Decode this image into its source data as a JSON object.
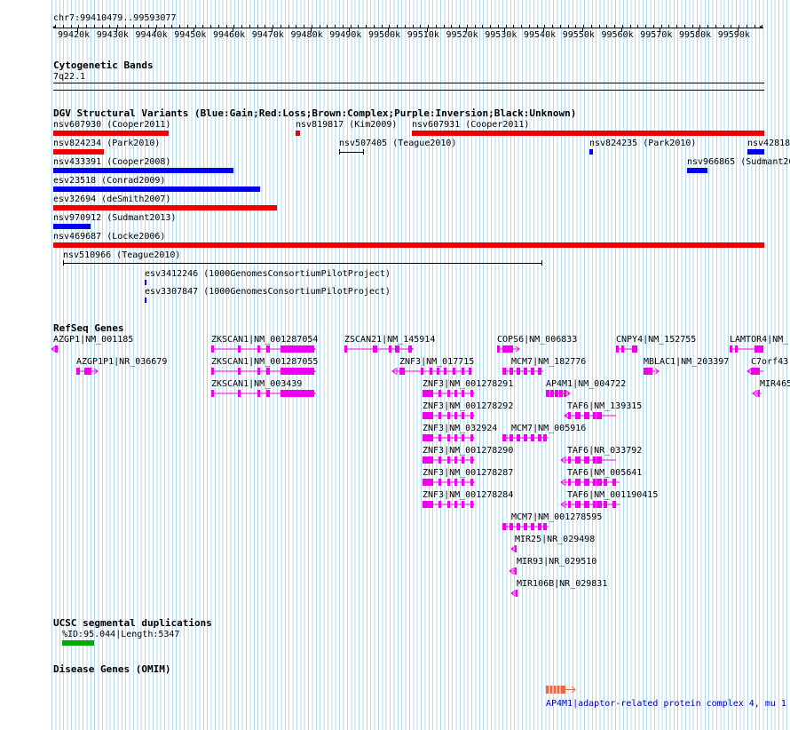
{
  "header": {
    "location": "chr7:99410479..99593077",
    "ruler_ticks": [
      "99420k",
      "99430k",
      "99440k",
      "99450k",
      "99460k",
      "99470k",
      "99480k",
      "99490k",
      "99500k",
      "99510k",
      "99520k",
      "99530k",
      "99540k",
      "99550k",
      "99560k",
      "99570k",
      "99580k",
      "99590k"
    ]
  },
  "cyto": {
    "title": "Cytogenetic Bands",
    "band": "7q22.1"
  },
  "dgv": {
    "title": "DGV Structural Variants (Blue:Gain;Red:Loss;Brown:Complex;Purple:Inversion;Black:Unknown)",
    "items": [
      "nsv607930 (Cooper2011)",
      "nsv819817 (Kim2009)",
      "nsv607931 (Cooper2011)",
      "nsv824234 (Park2010)",
      "nsv507405 (Teague2010)",
      "nsv824235 (Park2010)",
      "nsv42818",
      "nsv433391 (Cooper2008)",
      "nsv966865 (Sudmant20",
      "esv23518 (Conrad2009)",
      "esv32694 (deSmith2007)",
      "nsv970912 (Sudmant2013)",
      "nsv469687 (Locke2006)",
      "nsv510966 (Teague2010)",
      "esv3412246 (1000GenomesConsortiumPilotProject)",
      "esv3307847 (1000GenomesConsortiumPilotProject)"
    ],
    "colors": {
      "gain": "#0000ee",
      "loss": "#ee0000",
      "unknown": "#000000"
    }
  },
  "refseq": {
    "title": "RefSeq Genes",
    "genes": [
      "AZGP1|NM_001185",
      "AZGP1P1|NR_036679",
      "ZKSCAN1|NM_001287054",
      "ZKSCAN1|NM_001287055",
      "ZKSCAN1|NM_003439",
      "ZSCAN21|NM_145914",
      "ZNF3|NM_017715",
      "ZNF3|NM_001278291",
      "ZNF3|NM_001278292",
      "ZNF3|NM_032924",
      "ZNF3|NM_001278290",
      "ZNF3|NM_001278287",
      "ZNF3|NM_001278284",
      "COPS6|NM_006833",
      "MCM7|NM_182776",
      "AP4M1|NM_004722",
      "MCM7|NM_005916",
      "MCM7|NM_001278595",
      "MIR25|NR_029498",
      "MIR93|NR_029510",
      "MIR106B|NR_029831",
      "CNPY4|NM_152755",
      "MBLAC1|NM_203397",
      "TAF6|NM_139315",
      "TAF6|NR_033792",
      "TAF6|NM_005641",
      "TAF6|NM_001190415",
      "LAMTOR4|NM_(",
      "C7orf43",
      "MIR465"
    ],
    "color": "#ee00ee"
  },
  "segdup": {
    "title": "UCSC segmental duplications",
    "item": "%ID:95.044|Length:5347",
    "color": "#00aa00"
  },
  "omim": {
    "title": "Disease Genes (OMIM)",
    "item": "AP4M1|adaptor-related protein complex 4, mu 1",
    "color": "#ee6644",
    "label_color": "#0000aa"
  }
}
